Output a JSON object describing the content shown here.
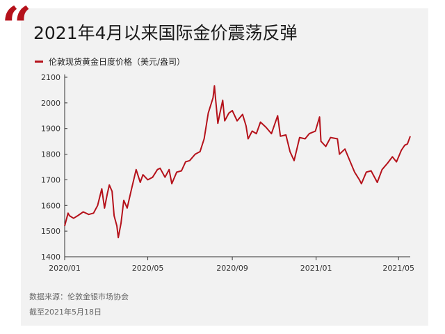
{
  "title": "2021年4月以来国际金价震荡反弹",
  "legend_label": "伦敦现货黄金日度价格（美元/盎司）",
  "source_text": "数据来源：伦敦金银市场协会",
  "cutoff_text": "截至2021年5月18日",
  "colors": {
    "accent": "#b5121b",
    "panel": "#f2f2f2"
  },
  "chart_data": {
    "type": "line",
    "title": "2021年4月以来国际金价震荡反弹",
    "xlabel": "",
    "ylabel": "",
    "ylim": [
      1400,
      2100
    ],
    "yticks": [
      1400,
      1500,
      1600,
      1700,
      1800,
      1900,
      2000,
      2100
    ],
    "xticks": [
      "2020/01",
      "2020/05",
      "2020/09",
      "2021/01",
      "2021/05"
    ],
    "xlim": [
      "2020-01-01",
      "2021-05-18"
    ],
    "grid": false,
    "legend": "top-left",
    "series": [
      {
        "name": "伦敦现货黄金日度价格（美元/盎司）",
        "color": "#b5121b",
        "points": [
          [
            "2020-01-01",
            1520
          ],
          [
            "2020-01-06",
            1570
          ],
          [
            "2020-01-08",
            1560
          ],
          [
            "2020-01-14",
            1550
          ],
          [
            "2020-01-20",
            1560
          ],
          [
            "2020-01-28",
            1575
          ],
          [
            "2020-02-05",
            1565
          ],
          [
            "2020-02-12",
            1570
          ],
          [
            "2020-02-18",
            1600
          ],
          [
            "2020-02-24",
            1665
          ],
          [
            "2020-02-28",
            1590
          ],
          [
            "2020-03-03",
            1645
          ],
          [
            "2020-03-06",
            1680
          ],
          [
            "2020-03-10",
            1655
          ],
          [
            "2020-03-13",
            1560
          ],
          [
            "2020-03-17",
            1520
          ],
          [
            "2020-03-19",
            1475
          ],
          [
            "2020-03-23",
            1530
          ],
          [
            "2020-03-27",
            1620
          ],
          [
            "2020-04-01",
            1590
          ],
          [
            "2020-04-07",
            1660
          ],
          [
            "2020-04-14",
            1740
          ],
          [
            "2020-04-20",
            1690
          ],
          [
            "2020-04-24",
            1720
          ],
          [
            "2020-05-01",
            1700
          ],
          [
            "2020-05-08",
            1710
          ],
          [
            "2020-05-15",
            1740
          ],
          [
            "2020-05-19",
            1745
          ],
          [
            "2020-05-26",
            1710
          ],
          [
            "2020-06-01",
            1740
          ],
          [
            "2020-06-05",
            1685
          ],
          [
            "2020-06-12",
            1730
          ],
          [
            "2020-06-19",
            1735
          ],
          [
            "2020-06-25",
            1770
          ],
          [
            "2020-07-01",
            1775
          ],
          [
            "2020-07-09",
            1800
          ],
          [
            "2020-07-16",
            1810
          ],
          [
            "2020-07-22",
            1860
          ],
          [
            "2020-07-28",
            1960
          ],
          [
            "2020-08-04",
            2020
          ],
          [
            "2020-08-06",
            2067
          ],
          [
            "2020-08-07",
            2035
          ],
          [
            "2020-08-11",
            1920
          ],
          [
            "2020-08-14",
            1960
          ],
          [
            "2020-08-18",
            2010
          ],
          [
            "2020-08-21",
            1930
          ],
          [
            "2020-08-27",
            1960
          ],
          [
            "2020-09-01",
            1970
          ],
          [
            "2020-09-08",
            1930
          ],
          [
            "2020-09-16",
            1955
          ],
          [
            "2020-09-21",
            1910
          ],
          [
            "2020-09-24",
            1860
          ],
          [
            "2020-09-30",
            1890
          ],
          [
            "2020-10-06",
            1880
          ],
          [
            "2020-10-12",
            1925
          ],
          [
            "2020-10-20",
            1905
          ],
          [
            "2020-10-28",
            1880
          ],
          [
            "2020-11-06",
            1950
          ],
          [
            "2020-11-10",
            1870
          ],
          [
            "2020-11-18",
            1875
          ],
          [
            "2020-11-24",
            1810
          ],
          [
            "2020-11-30",
            1775
          ],
          [
            "2020-12-08",
            1865
          ],
          [
            "2020-12-16",
            1860
          ],
          [
            "2020-12-22",
            1880
          ],
          [
            "2020-12-31",
            1890
          ],
          [
            "2021-01-06",
            1945
          ],
          [
            "2021-01-08",
            1850
          ],
          [
            "2021-01-15",
            1830
          ],
          [
            "2021-01-22",
            1865
          ],
          [
            "2021-02-01",
            1860
          ],
          [
            "2021-02-04",
            1800
          ],
          [
            "2021-02-12",
            1820
          ],
          [
            "2021-02-19",
            1775
          ],
          [
            "2021-02-26",
            1730
          ],
          [
            "2021-03-05",
            1700
          ],
          [
            "2021-03-08",
            1685
          ],
          [
            "2021-03-15",
            1730
          ],
          [
            "2021-03-22",
            1735
          ],
          [
            "2021-03-31",
            1690
          ],
          [
            "2021-04-07",
            1740
          ],
          [
            "2021-04-15",
            1765
          ],
          [
            "2021-04-22",
            1790
          ],
          [
            "2021-04-28",
            1770
          ],
          [
            "2021-05-05",
            1815
          ],
          [
            "2021-05-10",
            1835
          ],
          [
            "2021-05-14",
            1840
          ],
          [
            "2021-05-18",
            1870
          ]
        ]
      }
    ]
  }
}
